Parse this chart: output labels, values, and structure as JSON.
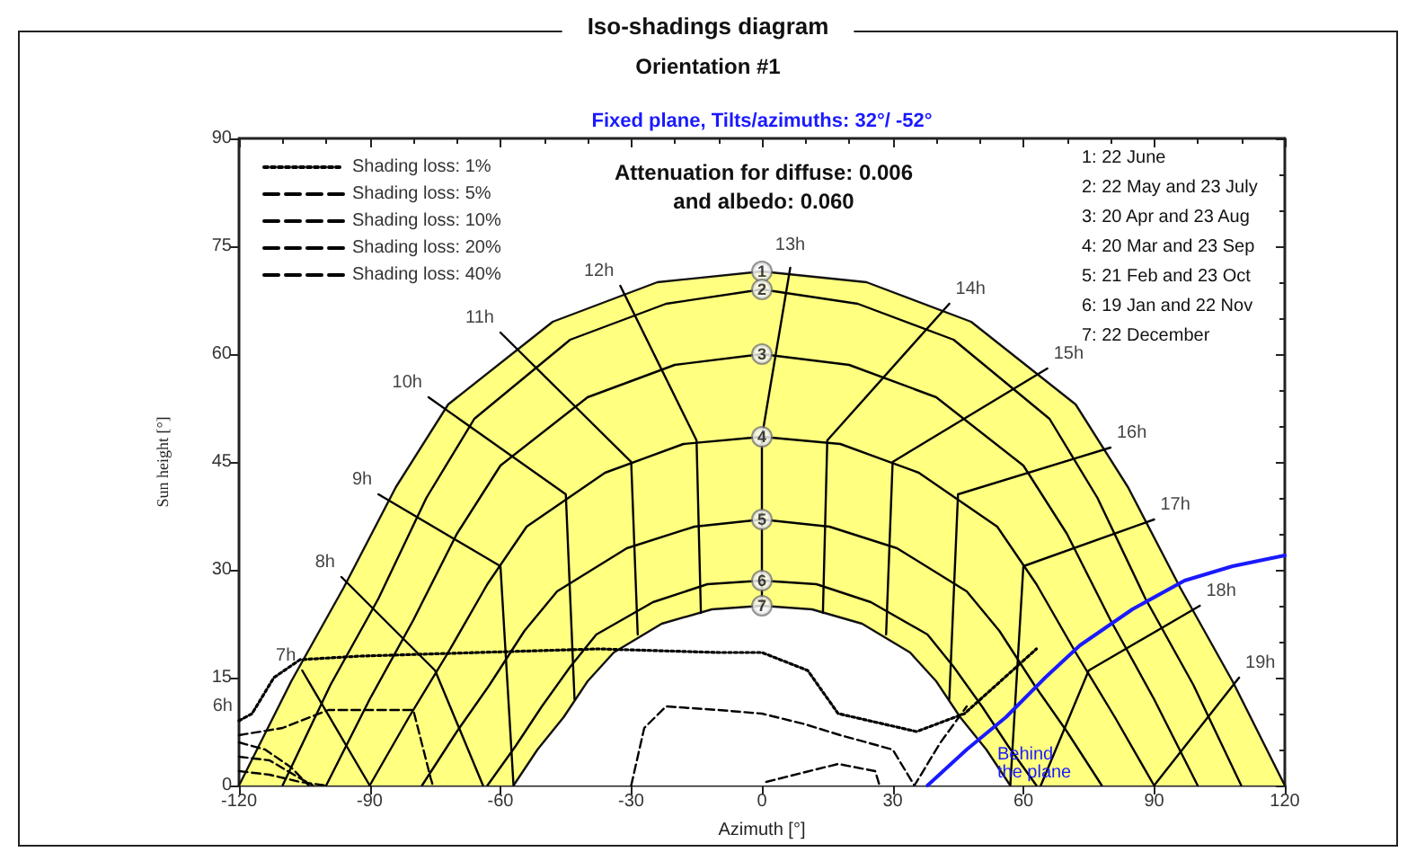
{
  "chart_data": {
    "type": "line",
    "title": "Iso-shadings diagram",
    "subtitle": "Orientation #1",
    "xlabel": "Azimuth [°]",
    "ylabel": "Sun height [°]",
    "xlim": [
      -120,
      120
    ],
    "xticks": [
      -120,
      -90,
      -60,
      -30,
      0,
      30,
      60,
      90,
      120
    ],
    "ylim": [
      0,
      90
    ],
    "yticks": [
      0,
      15,
      30,
      45,
      60,
      75,
      90
    ],
    "grid": false,
    "legend": "top left",
    "marker": "none",
    "line_style": "solid",
    "annotations": [
      "Fixed plane, Tilts/azimuths: 32°/ -52°",
      "Attenuation for diffuse: 0.006\nand albedo: 0.060",
      "1: 22 June",
      "2: 22 May and 23 July",
      "3: 20 Apr and 23 Aug",
      "4: 20 Mar and 23 Sep",
      "5: 21 Feb and 23 Oct",
      "6: 19 Jan and 22 Nov",
      "7: 22 December",
      {
        "text": "6h",
        "x": -120,
        "y": 9
      },
      {
        "text": "7h",
        "x": -105.5,
        "y": 16
      },
      {
        "text": "8h",
        "x": -96.5,
        "y": 29
      },
      {
        "text": "9h",
        "x": -88,
        "y": 40.5
      },
      {
        "text": "10h",
        "x": -76.5,
        "y": 54
      },
      {
        "text": "11h",
        "x": -60,
        "y": 63
      },
      {
        "text": "12h",
        "x": -32.5,
        "y": 69.5
      },
      {
        "text": "13h",
        "x": 6.5,
        "y": 72
      },
      {
        "text": "14h",
        "x": 43,
        "y": 67
      },
      {
        "text": "15h",
        "x": 65.5,
        "y": 58
      },
      {
        "text": "16h",
        "x": 80,
        "y": 47
      },
      {
        "text": "17h",
        "x": 90,
        "y": 37
      },
      {
        "text": "18h",
        "x": 100.5,
        "y": 25
      },
      {
        "text": "19h",
        "x": 109.5,
        "y": 15
      },
      {
        "text": "1",
        "x": 0,
        "y": 71.5
      },
      {
        "text": "2",
        "x": 0,
        "y": 69
      },
      {
        "text": "3",
        "x": 0,
        "y": 60
      },
      {
        "text": "4",
        "x": 0,
        "y": 48.5
      },
      {
        "text": "5",
        "x": 0,
        "y": 37
      },
      {
        "text": "6",
        "x": 0,
        "y": 28.5
      },
      {
        "text": "7",
        "x": 0,
        "y": 25
      }
    ],
    "series": [
      {
        "type": "area",
        "color": "#ffff80",
        "x": [
          -120,
          -108,
          -96,
          -84,
          -72,
          -48,
          -24,
          0,
          24,
          48,
          72,
          84,
          96,
          108,
          120
        ],
        "values": [
          0,
          14.5,
          27.5,
          41.5,
          53,
          64.5,
          70,
          71.5,
          70,
          64.5,
          53,
          41.5,
          27.5,
          14.5,
          0
        ]
      },
      {
        "type": "area",
        "color": "#ffffff",
        "x": [
          -57,
          -51.5,
          -45.5,
          -40,
          -34,
          -23,
          -11.5,
          0,
          11.5,
          23,
          34,
          40,
          45.5,
          51.5,
          57
        ],
        "values": [
          0,
          5,
          9.5,
          14.5,
          18.5,
          22.5,
          24.5,
          25,
          24.5,
          22.5,
          18.5,
          14.5,
          9.5,
          5,
          0
        ]
      },
      {
        "color": "#000000",
        "x": [
          -110,
          -99,
          -88,
          -77,
          -66,
          -44,
          -22,
          0,
          22,
          44,
          66,
          77,
          88,
          99,
          110
        ],
        "values": [
          0,
          14,
          26,
          40,
          51,
          62,
          67,
          69,
          67,
          62,
          51,
          40,
          26,
          14,
          0
        ]
      },
      {
        "color": "#000000",
        "x": [
          -100,
          -90,
          -80,
          -70,
          -60,
          -40,
          -20,
          0,
          20,
          40,
          60,
          70,
          80,
          90,
          100
        ],
        "values": [
          0,
          12,
          23,
          35,
          44.5,
          54,
          58.5,
          60,
          58.5,
          54,
          44.5,
          35,
          23,
          12,
          0
        ]
      },
      {
        "color": "#000000",
        "x": [
          -90,
          -81,
          -72,
          -63,
          -54,
          -36,
          -18,
          0,
          18,
          36,
          54,
          63,
          72,
          81,
          90
        ],
        "values": [
          0,
          9.5,
          18.5,
          28,
          36,
          43.5,
          47.5,
          48.5,
          47.5,
          43.5,
          36,
          28,
          18.5,
          9.5,
          0
        ]
      },
      {
        "color": "#000000",
        "x": [
          -78,
          -70,
          -62.5,
          -54.5,
          -47,
          -31,
          -15.5,
          0,
          15.5,
          31,
          47,
          54.5,
          62.5,
          70,
          78
        ],
        "values": [
          0,
          7.5,
          14,
          21.5,
          27,
          33,
          36,
          37,
          36,
          33,
          27,
          21.5,
          14,
          7.5,
          0
        ]
      },
      {
        "color": "#000000",
        "x": [
          -63,
          -56.5,
          -50.5,
          -44,
          -38,
          -25,
          -12.5,
          0,
          12.5,
          25,
          38,
          44,
          50.5,
          56.5,
          63
        ],
        "values": [
          0,
          5.5,
          11,
          16.5,
          21,
          25.5,
          28,
          28.5,
          28,
          25.5,
          21,
          16.5,
          11,
          5.5,
          0
        ]
      },
      {
        "color": "#000000",
        "x": [
          -105.5,
          -90
        ],
        "values": [
          16,
          0
        ]
      },
      {
        "color": "#000000",
        "x": [
          -96.5,
          -75,
          -64
        ],
        "values": [
          29,
          16,
          0
        ]
      },
      {
        "color": "#000000",
        "x": [
          -88,
          -60,
          -57
        ],
        "values": [
          40.5,
          30.5,
          0
        ]
      },
      {
        "color": "#000000",
        "x": [
          -76.5,
          -45,
          -43
        ],
        "values": [
          54,
          40.5,
          12
        ]
      },
      {
        "color": "#000000",
        "x": [
          -60,
          -30,
          -28.5
        ],
        "values": [
          63,
          45,
          21
        ]
      },
      {
        "color": "#000000",
        "x": [
          -32.5,
          -15,
          -14
        ],
        "values": [
          69.5,
          48,
          24
        ]
      },
      {
        "color": "#000000",
        "x": [
          6.5,
          0,
          0
        ],
        "values": [
          72,
          48.5,
          25
        ]
      },
      {
        "color": "#000000",
        "x": [
          43,
          15,
          14
        ],
        "values": [
          67,
          48,
          24
        ]
      },
      {
        "color": "#000000",
        "x": [
          65.5,
          30,
          28.5
        ],
        "values": [
          58,
          45,
          21
        ]
      },
      {
        "color": "#000000",
        "x": [
          80,
          45,
          43
        ],
        "values": [
          47,
          40.5,
          12
        ]
      },
      {
        "color": "#000000",
        "x": [
          90,
          60,
          57
        ],
        "values": [
          37,
          30.5,
          0
        ]
      },
      {
        "color": "#000000",
        "x": [
          100.5,
          75,
          64
        ],
        "values": [
          25,
          16,
          0
        ]
      },
      {
        "color": "#000000",
        "x": [
          109.5,
          90
        ],
        "values": [
          15,
          0
        ]
      },
      {
        "name": "Shading loss: 1%",
        "color": "#000000",
        "line_style": "dotted",
        "x": [
          -120,
          -117,
          -112,
          -106,
          -92,
          -65,
          -37.5,
          -10,
          0,
          10.5,
          17.5,
          35.5,
          46.5,
          63
        ],
        "values": [
          9,
          10,
          15,
          17.5,
          18,
          18.5,
          19,
          18.5,
          18.5,
          16,
          10,
          7.5,
          10,
          19
        ]
      },
      {
        "name": "Shading loss: 5%",
        "color": "#000000",
        "line_style": "dashed",
        "x": [
          -120,
          -110,
          -99.5,
          -80,
          -76,
          -75.5,
          -60,
          -30,
          -27,
          -22,
          -10,
          0,
          10,
          18,
          30,
          35,
          41,
          47
        ],
        "values": [
          7,
          8,
          10.5,
          10.5,
          1,
          0,
          null,
          0,
          8,
          11,
          10.5,
          10,
          8.5,
          7,
          5,
          0,
          6,
          11
        ]
      },
      {
        "name": "Shading loss: 10%",
        "color": "#000000",
        "line_style": "dashed",
        "x": [
          -120,
          -113,
          -106,
          -103,
          -40,
          1,
          17.5,
          26,
          27
        ],
        "values": [
          4,
          3.5,
          1,
          0,
          null,
          0.5,
          3,
          2,
          0
        ]
      },
      {
        "name": "Shading loss: 20%",
        "color": "#000000",
        "line_style": "dashed",
        "x": [
          -120,
          -114,
          -108,
          -104
        ],
        "values": [
          6,
          5,
          2.5,
          0
        ]
      },
      {
        "name": "Shading loss: 40%",
        "color": "#000000",
        "line_style": "dashed",
        "x": [
          -120,
          -113,
          -106,
          -100
        ],
        "values": [
          2,
          1.5,
          0.5,
          0
        ]
      },
      {
        "name": "Behind the plane",
        "color": "#1a1aff",
        "x": [
          38,
          47,
          56,
          65,
          73,
          85,
          97,
          108,
          120
        ],
        "values": [
          0,
          5,
          9.5,
          15,
          19.5,
          24.5,
          28.5,
          30.5,
          32
        ]
      }
    ]
  }
}
